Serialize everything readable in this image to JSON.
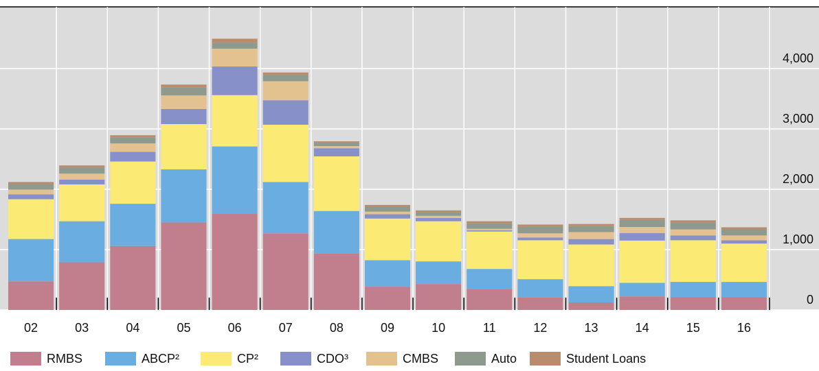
{
  "chart_data": {
    "type": "stacked_bar",
    "categories": [
      "02",
      "03",
      "04",
      "05",
      "06",
      "07",
      "08",
      "09",
      "10",
      "11",
      "12",
      "13",
      "14",
      "15",
      "16"
    ],
    "series": [
      {
        "name": "RMBS",
        "color": "#c17f8e",
        "values": [
          475,
          790,
          1060,
          1450,
          1600,
          1270,
          940,
          385,
          430,
          350,
          205,
          125,
          225,
          215,
          215
        ]
      },
      {
        "name": "ABCP²",
        "color": "#6aade0",
        "values": [
          700,
          680,
          700,
          880,
          1110,
          850,
          700,
          440,
          375,
          330,
          305,
          270,
          225,
          250,
          250
        ]
      },
      {
        "name": "CP²",
        "color": "#fbea74",
        "values": [
          660,
          610,
          700,
          750,
          850,
          950,
          905,
          690,
          665,
          620,
          645,
          690,
          700,
          690,
          635
        ]
      },
      {
        "name": "CDO³",
        "color": "#8790c9",
        "values": [
          80,
          80,
          160,
          250,
          475,
          405,
          135,
          70,
          55,
          20,
          45,
          90,
          125,
          80,
          55
        ]
      },
      {
        "name": "CMBS",
        "color": "#e3c290",
        "values": [
          80,
          100,
          140,
          225,
          295,
          315,
          35,
          45,
          35,
          25,
          70,
          115,
          100,
          100,
          80
        ]
      },
      {
        "name": "Auto",
        "color": "#8e9a8d",
        "values": [
          90,
          100,
          100,
          135,
          100,
          100,
          55,
          80,
          55,
          90,
          110,
          100,
          115,
          115,
          100
        ]
      },
      {
        "name": "Student Loans",
        "color": "#b98c6e",
        "values": [
          35,
          35,
          35,
          45,
          65,
          45,
          25,
          30,
          35,
          35,
          35,
          35,
          35,
          35,
          35
        ]
      }
    ],
    "ylim": [
      0,
      5000
    ],
    "yticks": [
      0,
      {
        "value": 1000,
        "label": "1,000"
      },
      {
        "value": 2000,
        "label": "2,000"
      },
      {
        "value": 3000,
        "label": "3,000"
      },
      {
        "value": 4000,
        "label": "4,000"
      }
    ],
    "grid": true
  }
}
